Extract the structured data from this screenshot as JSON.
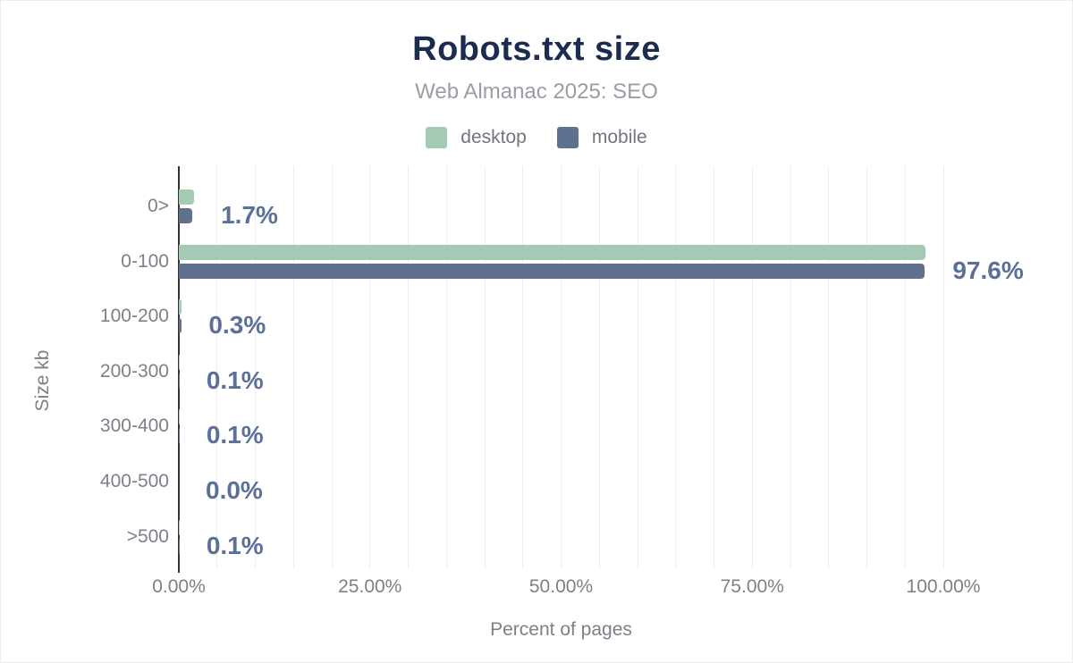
{
  "chart_data": {
    "type": "bar",
    "orientation": "horizontal",
    "title": "Robots.txt size",
    "subtitle": "Web Almanac 2025: SEO",
    "xlabel": "Percent of pages",
    "ylabel": "Size kb",
    "categories": [
      "0>",
      "0-100",
      "100-200",
      "200-300",
      "300-400",
      "400-500",
      ">500"
    ],
    "series": [
      {
        "name": "desktop",
        "color": "#a4c9b5",
        "values": [
          2.0,
          97.7,
          0.4,
          0.1,
          0.1,
          0.0,
          0.1
        ]
      },
      {
        "name": "mobile",
        "color": "#5f718e",
        "values": [
          1.7,
          97.6,
          0.3,
          0.1,
          0.1,
          0.0,
          0.1
        ]
      }
    ],
    "value_labels": [
      "1.7%",
      "97.6%",
      "0.3%",
      "0.1%",
      "0.1%",
      "0.0%",
      "0.1%"
    ],
    "x_ticks": [
      {
        "label": "0.00%",
        "value": 0
      },
      {
        "label": "25.00%",
        "value": 25
      },
      {
        "label": "50.00%",
        "value": 50
      },
      {
        "label": "75.00%",
        "value": 75
      },
      {
        "label": "100.00%",
        "value": 100
      }
    ],
    "xlim": [
      0,
      110.5
    ],
    "grid_interval": 5,
    "grid_on": true,
    "legend_position": "top",
    "colors": {
      "title": "#1c2c4e",
      "subtitle": "#9a9da4",
      "axis_text": "#7b8089",
      "value_label": "#5a7097",
      "gridline": "#ededed",
      "axis_line": "#333338"
    }
  }
}
